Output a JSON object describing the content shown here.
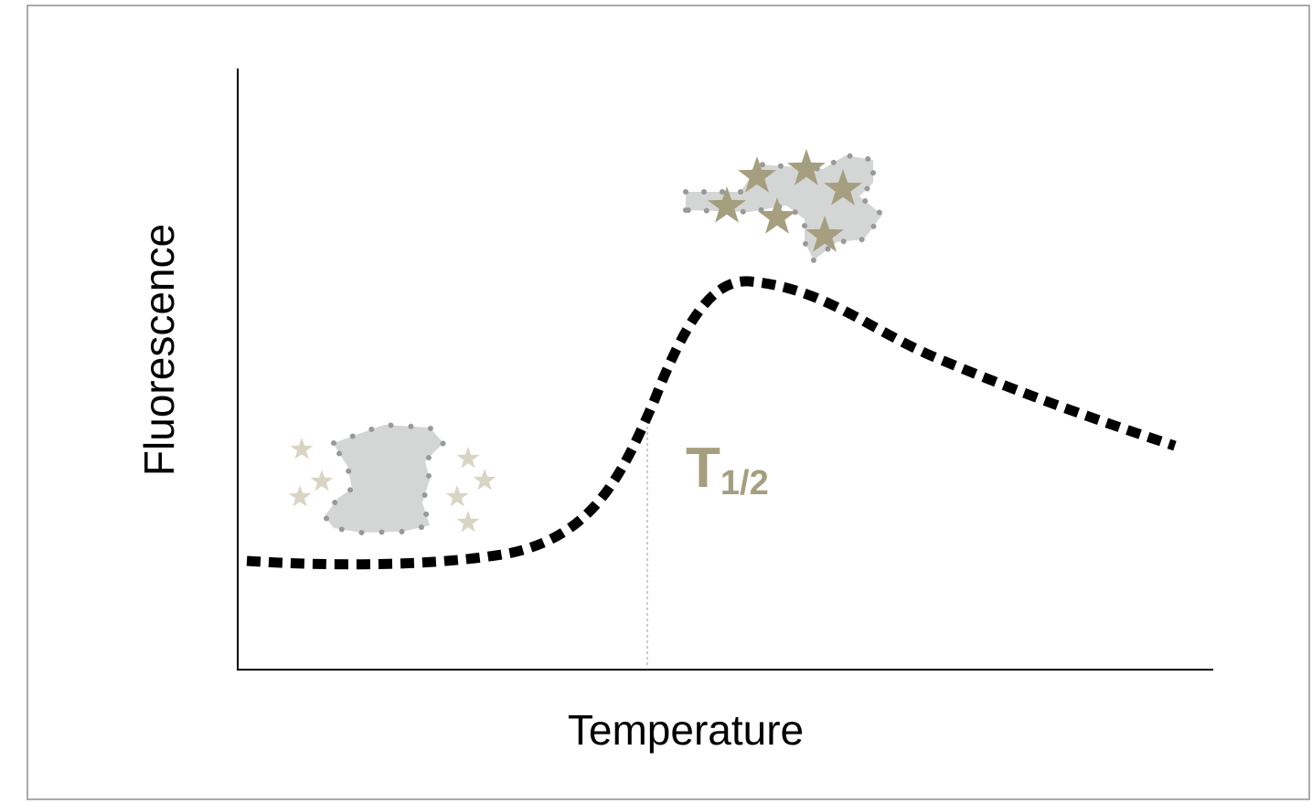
{
  "axes": {
    "x_label": "Temperature",
    "y_label": "Fluorescence"
  },
  "annotation": {
    "text": "T",
    "subscript": "1/2"
  }
}
